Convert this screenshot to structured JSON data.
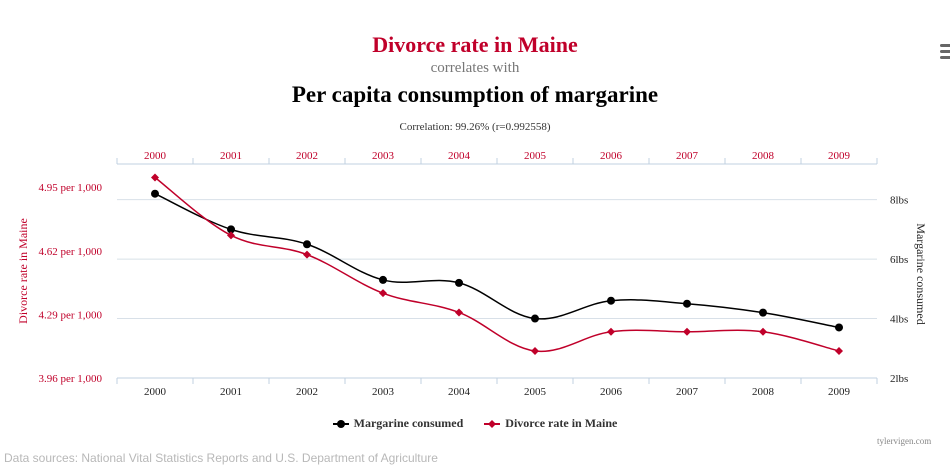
{
  "title": {
    "line1": "Divorce rate in Maine",
    "line2": "correlates with",
    "line3": "Per capita consumption of margarine",
    "correlation": "Correlation: 99.26% (r=0.992558)"
  },
  "colors": {
    "divorce": "#c0002a",
    "margarine": "#000000",
    "grid": "#d8e0e8",
    "axis": "#c0d0e0"
  },
  "menu_icon": "hamburger-menu-icon",
  "credit": "tylervigen.com",
  "sources": "Data sources: National Vital Statistics Reports and U.S. Department of Agriculture",
  "chart_data": {
    "type": "line",
    "categories": [
      "2000",
      "2001",
      "2002",
      "2003",
      "2004",
      "2005",
      "2006",
      "2007",
      "2008",
      "2009"
    ],
    "series": [
      {
        "name": "Margarine consumed",
        "axis": "right",
        "unit": "lbs",
        "marker": "circle",
        "values": [
          8.2,
          7.0,
          6.5,
          5.3,
          5.2,
          4.0,
          4.6,
          4.5,
          4.2,
          3.7
        ]
      },
      {
        "name": "Divorce rate in Maine",
        "axis": "left",
        "unit": "per 1,000",
        "marker": "diamond",
        "values": [
          5.0,
          4.7,
          4.6,
          4.4,
          4.3,
          4.1,
          4.2,
          4.2,
          4.2,
          4.1
        ]
      }
    ],
    "left_axis": {
      "label": "Divorce rate in Maine",
      "ticks": [
        "3.96 per 1,000",
        "4.29 per 1,000",
        "4.62 per 1,000",
        "4.95 per 1,000"
      ],
      "tick_values": [
        3.96,
        4.29,
        4.62,
        4.95
      ],
      "range": [
        3.96,
        5.07
      ]
    },
    "right_axis": {
      "label": "Margarine consumed",
      "ticks": [
        "2lbs",
        "4lbs",
        "6lbs",
        "8lbs"
      ],
      "tick_values": [
        2,
        4,
        6,
        8
      ],
      "range": [
        2,
        9.2
      ]
    },
    "legend": [
      "Margarine consumed",
      "Divorce rate in Maine"
    ],
    "legend_position": "bottom-center"
  }
}
